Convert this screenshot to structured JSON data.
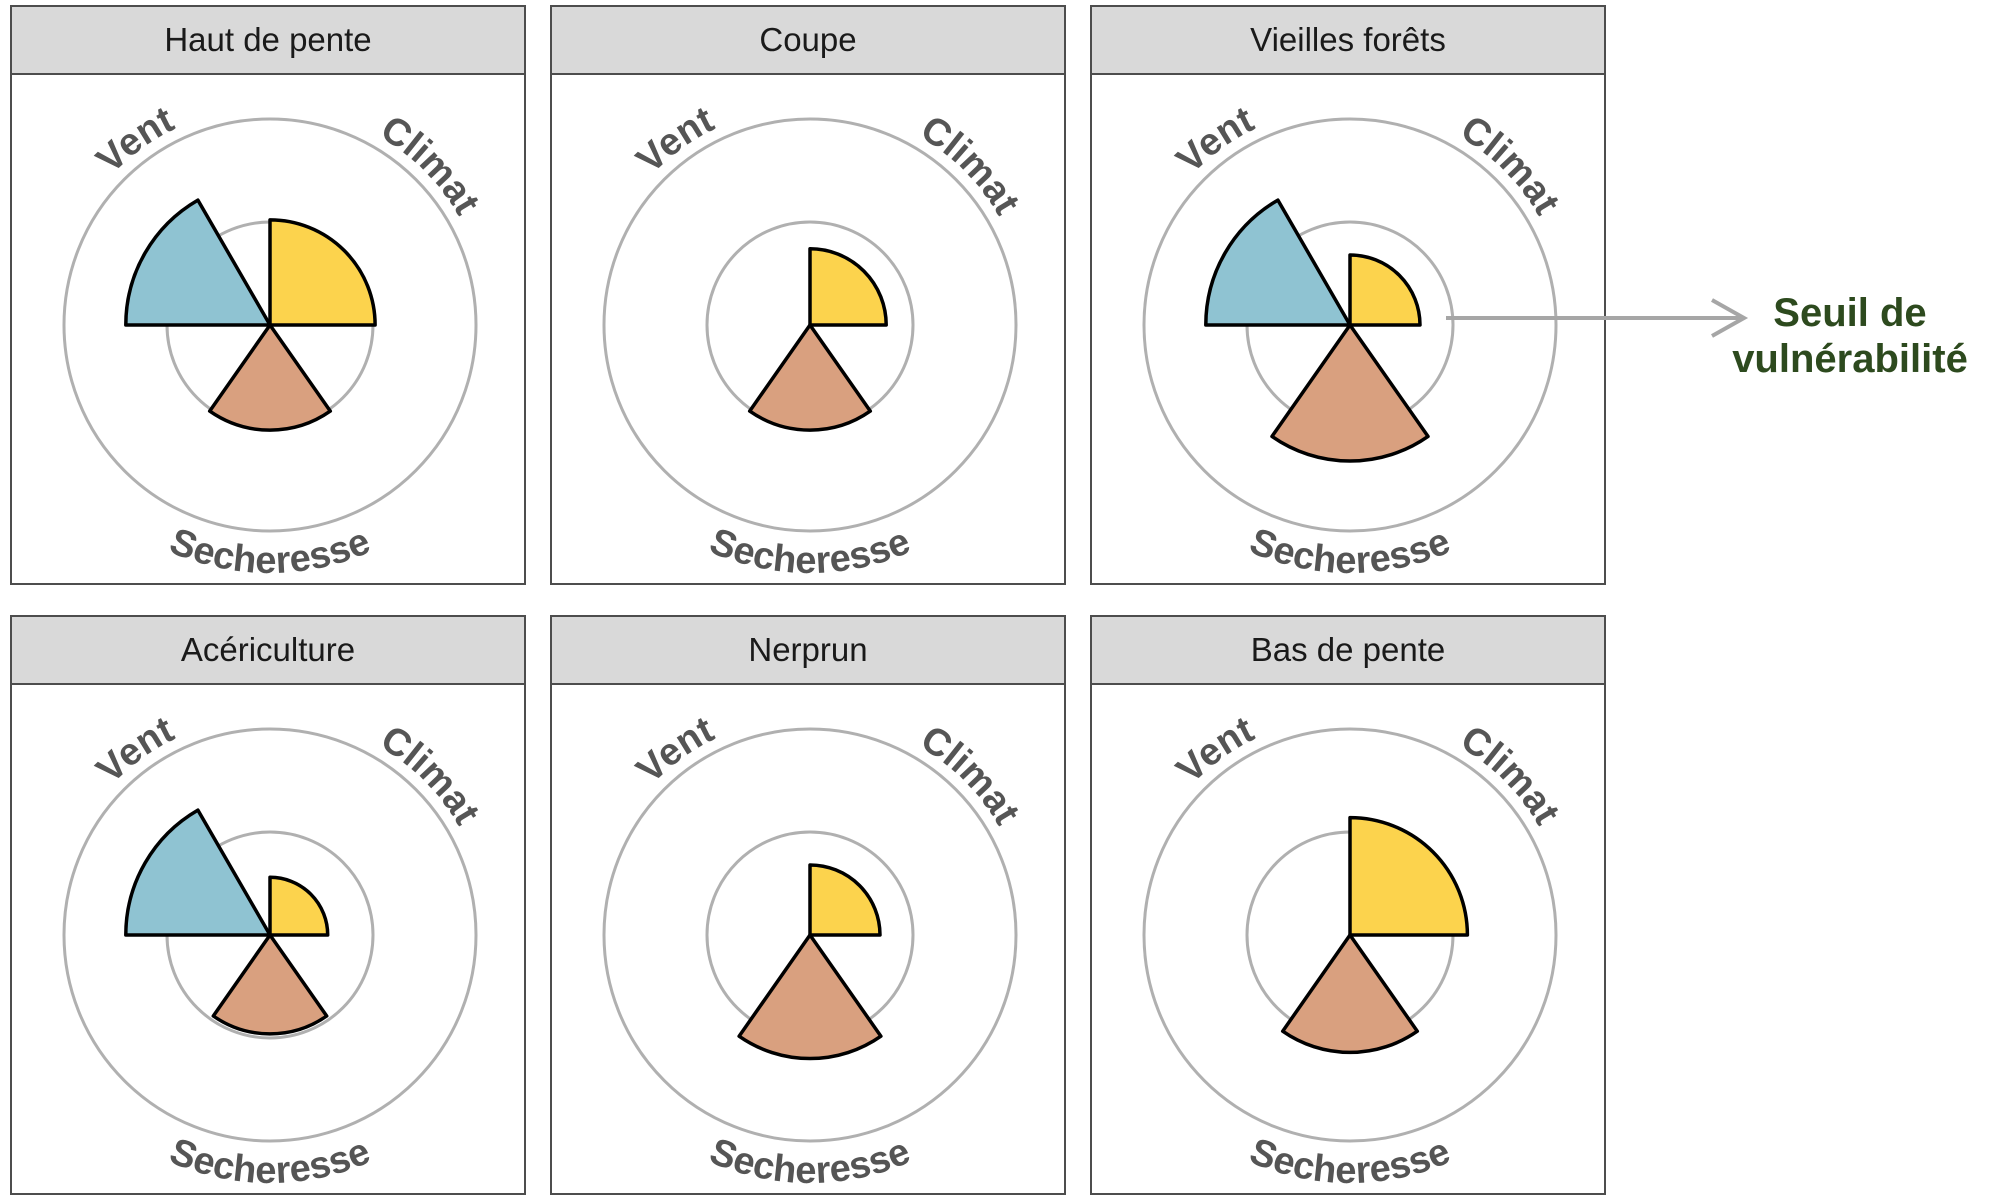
{
  "chart_data": {
    "type": "polar-area",
    "axes": [
      "Vent",
      "Climat",
      "Secheresse"
    ],
    "threshold_ring": 0.5,
    "colors": {
      "Vent": "#8fc3d2",
      "Climat": "#fcd34d",
      "Secheresse": "#d9a07f"
    },
    "panels": [
      {
        "title": "Haut de pente",
        "values": {
          "Vent": 0.7,
          "Climat": 0.51,
          "Secheresse": 0.51
        }
      },
      {
        "title": "Coupe",
        "values": {
          "Vent": 0,
          "Climat": 0.37,
          "Secheresse": 0.51
        }
      },
      {
        "title": "Vieilles forêts",
        "values": {
          "Vent": 0.7,
          "Climat": 0.34,
          "Secheresse": 0.66
        }
      },
      {
        "title": "Acériculture",
        "values": {
          "Vent": 0.7,
          "Climat": 0.28,
          "Secheresse": 0.48
        }
      },
      {
        "title": "Nerprun",
        "values": {
          "Vent": 0,
          "Climat": 0.34,
          "Secheresse": 0.6
        }
      },
      {
        "title": "Bas de pente",
        "values": {
          "Vent": 0,
          "Climat": 0.57,
          "Secheresse": 0.57
        }
      }
    ]
  },
  "annotation": {
    "line1": "Seuil de",
    "line2": "vulnérabilité"
  }
}
